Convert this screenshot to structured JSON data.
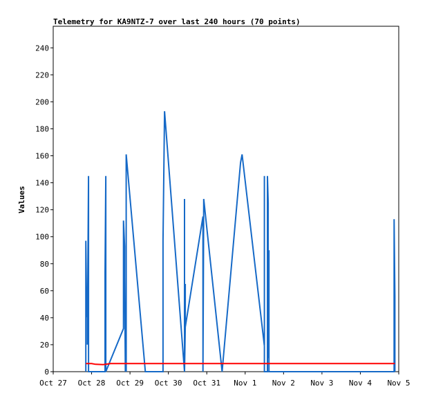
{
  "chart_data": {
    "type": "line",
    "title": "Telemetry for KA9NTZ-7 over last 240 hours (70 points)",
    "xlabel": "",
    "ylabel": "Values",
    "xlim": [
      0,
      9
    ],
    "ylim": [
      0,
      256
    ],
    "x_tick_labels": [
      "Oct 27",
      "Oct 28",
      "Oct 29",
      "Oct 30",
      "Oct 31",
      "Nov 1",
      "Nov 2",
      "Nov 3",
      "Nov 4",
      "Nov 5"
    ],
    "y_ticks": [
      0,
      20,
      40,
      60,
      80,
      100,
      120,
      140,
      160,
      180,
      200,
      220,
      240
    ],
    "grid": false,
    "series": [
      {
        "color": "#1569c7",
        "points": [
          [
            0.85,
            0
          ],
          [
            0.85,
            97
          ],
          [
            0.87,
            48
          ],
          [
            0.87,
            44
          ],
          [
            0.89,
            40
          ],
          [
            0.89,
            20
          ],
          [
            0.92,
            145
          ],
          [
            0.92,
            0
          ],
          [
            1.35,
            0
          ],
          [
            1.35,
            73
          ],
          [
            1.37,
            145
          ],
          [
            1.37,
            0
          ],
          [
            1.83,
            32
          ],
          [
            1.83,
            112
          ],
          [
            1.86,
            93
          ],
          [
            1.86,
            70
          ],
          [
            1.88,
            0
          ],
          [
            1.88,
            32
          ],
          [
            1.9,
            0
          ],
          [
            1.9,
            161
          ],
          [
            2.4,
            0
          ],
          [
            2.86,
            0
          ],
          [
            2.86,
            97
          ],
          [
            2.9,
            193
          ],
          [
            3.42,
            0
          ],
          [
            3.42,
            128
          ],
          [
            3.42,
            0
          ],
          [
            3.44,
            33
          ],
          [
            3.44,
            65
          ],
          [
            3.44,
            33
          ],
          [
            3.9,
            115
          ],
          [
            3.9,
            0
          ],
          [
            3.92,
            128
          ],
          [
            4.4,
            0
          ],
          [
            4.88,
            155
          ],
          [
            4.92,
            161
          ],
          [
            5.5,
            19
          ],
          [
            5.5,
            145
          ],
          [
            5.5,
            0
          ],
          [
            5.58,
            0
          ],
          [
            5.58,
            145
          ],
          [
            5.6,
            125
          ],
          [
            5.6,
            10
          ],
          [
            5.62,
            90
          ],
          [
            5.62,
            0
          ],
          [
            8.88,
            0
          ],
          [
            8.88,
            113
          ],
          [
            8.9,
            56
          ],
          [
            8.9,
            0
          ]
        ]
      },
      {
        "color": "#ff0000",
        "points": [
          [
            0.85,
            6
          ],
          [
            1.0,
            6
          ],
          [
            1.1,
            5.5
          ],
          [
            1.3,
            5.2
          ],
          [
            1.5,
            6
          ],
          [
            8.9,
            6
          ]
        ]
      }
    ]
  }
}
